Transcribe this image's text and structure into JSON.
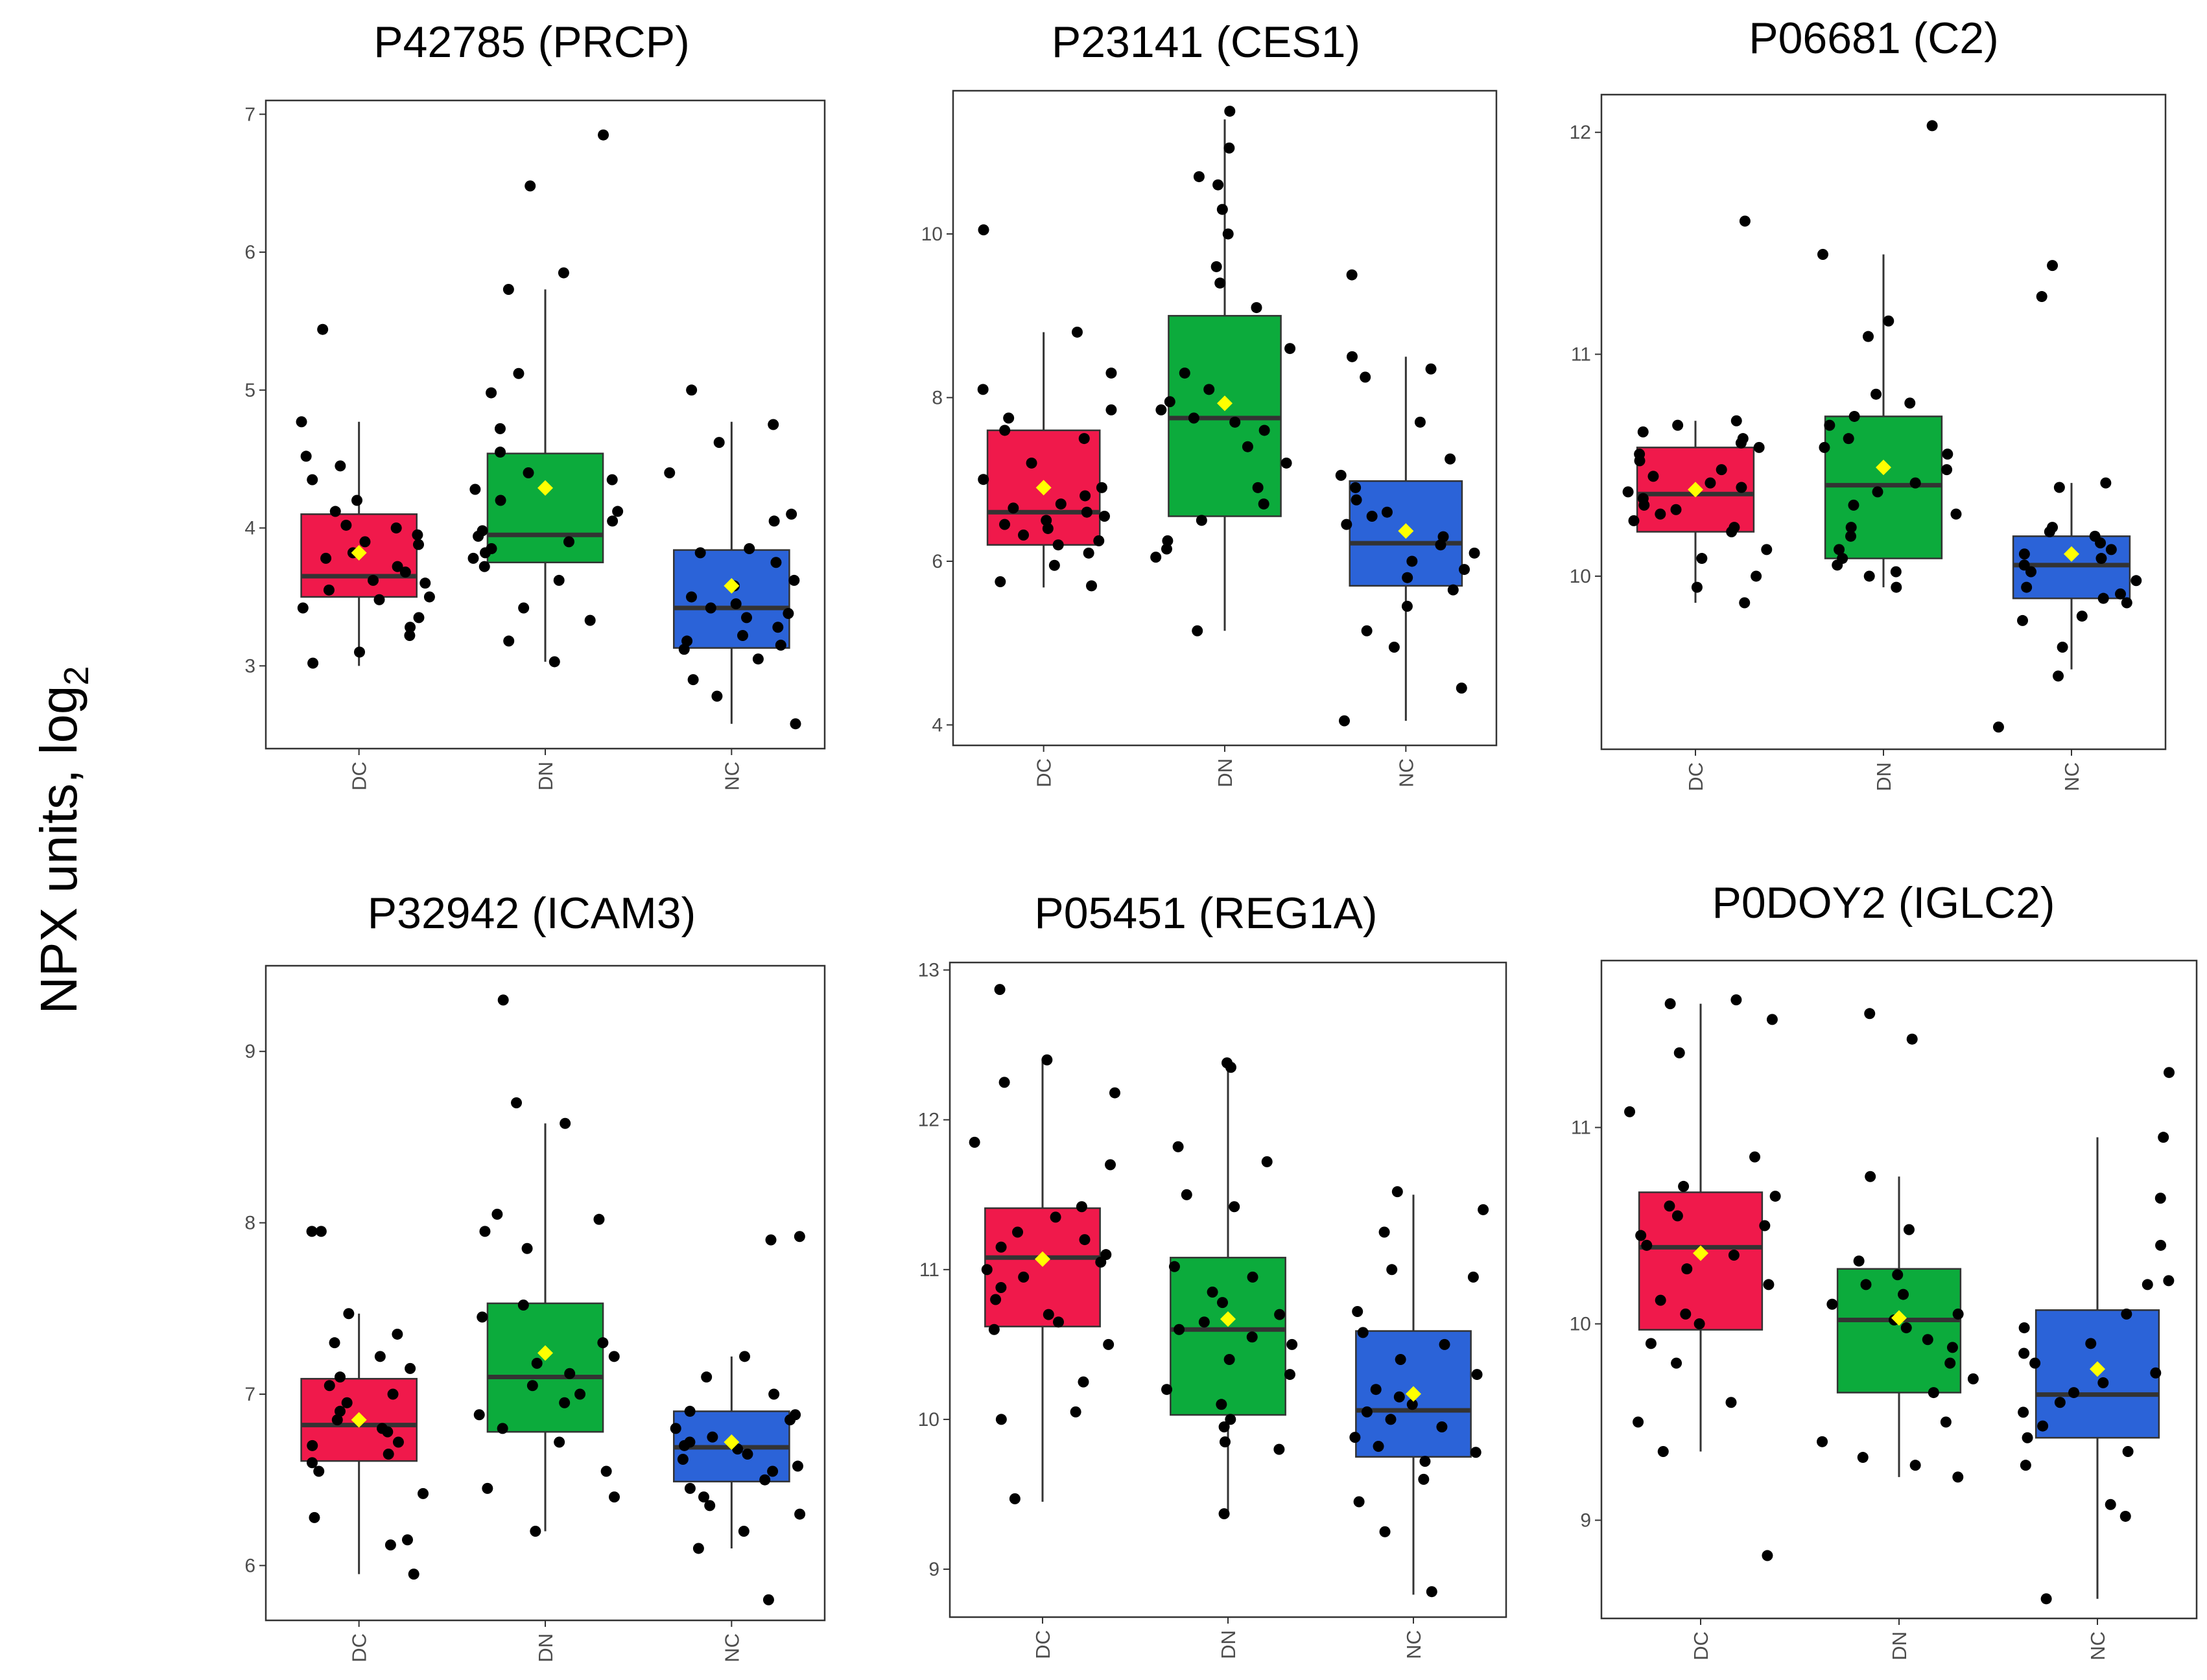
{
  "y_axis_label": {
    "text": "NPX units, log",
    "subscript": "2"
  },
  "colors": {
    "DC": "#f0194b",
    "DN": "#0cab3c",
    "NC": "#2b63d8",
    "mean_marker": "#ffff00",
    "point": "#000000",
    "median": "#333333"
  },
  "chart_data": [
    {
      "type": "box",
      "title": "P42785 (PRCP)",
      "categories": [
        "DC",
        "DN",
        "NC"
      ],
      "ylim": [
        2.4,
        7.1
      ],
      "yticks": [
        3,
        4,
        5,
        6,
        7
      ],
      "boxes": [
        {
          "cat": "DC",
          "q1": 3.5,
          "median": 3.65,
          "q3": 4.1,
          "whisker_low": 3.0,
          "whisker_high": 4.77,
          "mean": 3.82,
          "points": [
            3.02,
            3.1,
            3.22,
            3.28,
            3.35,
            3.42,
            3.48,
            3.5,
            3.55,
            3.6,
            3.62,
            3.68,
            3.72,
            3.78,
            3.82,
            3.88,
            3.9,
            3.95,
            4.0,
            4.02,
            4.12,
            4.2,
            4.35,
            4.45,
            4.52,
            4.77,
            5.44
          ]
        },
        {
          "cat": "DN",
          "q1": 3.75,
          "median": 3.95,
          "q3": 4.54,
          "whisker_low": 3.03,
          "whisker_high": 5.73,
          "mean": 4.29,
          "points": [
            3.03,
            3.18,
            3.33,
            3.42,
            3.62,
            3.72,
            3.78,
            3.82,
            3.85,
            3.9,
            3.94,
            3.98,
            4.05,
            4.12,
            4.2,
            4.28,
            4.35,
            4.4,
            4.55,
            4.72,
            4.98,
            5.12,
            5.73,
            5.85,
            6.48,
            6.85
          ]
        },
        {
          "cat": "NC",
          "q1": 3.13,
          "median": 3.42,
          "q3": 3.84,
          "whisker_low": 2.58,
          "whisker_high": 4.77,
          "mean": 3.58,
          "points": [
            2.58,
            2.78,
            2.9,
            3.05,
            3.12,
            3.15,
            3.18,
            3.22,
            3.28,
            3.35,
            3.38,
            3.42,
            3.45,
            3.5,
            3.58,
            3.62,
            3.75,
            3.82,
            3.85,
            4.05,
            4.1,
            4.4,
            4.62,
            4.75,
            5.0
          ]
        }
      ]
    },
    {
      "type": "box",
      "title": "P23141 (CES1)",
      "categories": [
        "DC",
        "DN",
        "NC"
      ],
      "ylim": [
        3.75,
        11.75
      ],
      "yticks": [
        4,
        6,
        8,
        10
      ],
      "boxes": [
        {
          "cat": "DC",
          "q1": 6.2,
          "median": 6.6,
          "q3": 7.6,
          "whisker_low": 5.68,
          "whisker_high": 8.8,
          "mean": 6.9,
          "points": [
            5.7,
            5.75,
            5.95,
            6.1,
            6.2,
            6.25,
            6.32,
            6.4,
            6.45,
            6.5,
            6.55,
            6.6,
            6.65,
            6.7,
            6.8,
            6.9,
            7.0,
            7.2,
            7.5,
            7.6,
            7.75,
            7.85,
            8.1,
            8.3,
            8.8,
            10.05
          ]
        },
        {
          "cat": "DN",
          "q1": 6.55,
          "median": 7.75,
          "q3": 9.0,
          "whisker_low": 5.15,
          "whisker_high": 11.4,
          "mean": 7.93,
          "points": [
            5.15,
            6.05,
            6.15,
            6.25,
            6.5,
            6.7,
            6.9,
            7.2,
            7.4,
            7.6,
            7.7,
            7.75,
            7.85,
            7.95,
            8.1,
            8.3,
            8.6,
            9.1,
            9.4,
            9.6,
            10.0,
            10.3,
            10.6,
            10.7,
            11.05,
            11.5
          ]
        },
        {
          "cat": "NC",
          "q1": 5.7,
          "median": 6.22,
          "q3": 6.98,
          "whisker_low": 4.05,
          "whisker_high": 8.5,
          "mean": 6.37,
          "points": [
            4.05,
            4.45,
            4.95,
            5.15,
            5.45,
            5.65,
            5.8,
            5.9,
            6.0,
            6.1,
            6.2,
            6.3,
            6.45,
            6.55,
            6.6,
            6.75,
            6.9,
            7.05,
            7.25,
            7.7,
            8.25,
            8.35,
            8.5,
            9.5
          ]
        }
      ]
    },
    {
      "type": "box",
      "title": "P06681 (C2)",
      "categories": [
        "DC",
        "DN",
        "NC"
      ],
      "ylim": [
        9.22,
        12.17
      ],
      "yticks": [
        10,
        11,
        12
      ],
      "boxes": [
        {
          "cat": "DC",
          "q1": 10.2,
          "median": 10.37,
          "q3": 10.58,
          "whisker_low": 9.88,
          "whisker_high": 10.7,
          "mean": 10.39,
          "points": [
            9.88,
            9.95,
            10.0,
            10.08,
            10.12,
            10.2,
            10.22,
            10.25,
            10.28,
            10.3,
            10.32,
            10.35,
            10.38,
            10.4,
            10.42,
            10.45,
            10.48,
            10.52,
            10.55,
            10.58,
            10.6,
            10.62,
            10.65,
            10.68,
            10.7,
            11.6
          ]
        },
        {
          "cat": "DN",
          "q1": 10.08,
          "median": 10.41,
          "q3": 10.72,
          "whisker_low": 9.95,
          "whisker_high": 11.45,
          "mean": 10.49,
          "points": [
            9.95,
            10.0,
            10.02,
            10.05,
            10.08,
            10.12,
            10.18,
            10.22,
            10.28,
            10.32,
            10.38,
            10.42,
            10.48,
            10.55,
            10.58,
            10.62,
            10.68,
            10.72,
            10.78,
            10.82,
            11.08,
            11.15,
            11.45,
            12.03
          ]
        },
        {
          "cat": "NC",
          "q1": 9.9,
          "median": 10.05,
          "q3": 10.18,
          "whisker_low": 9.58,
          "whisker_high": 10.42,
          "mean": 10.1,
          "points": [
            9.32,
            9.55,
            9.68,
            9.8,
            9.82,
            9.88,
            9.9,
            9.92,
            9.95,
            9.98,
            10.02,
            10.05,
            10.08,
            10.1,
            10.12,
            10.15,
            10.18,
            10.2,
            10.22,
            10.4,
            10.42,
            11.26,
            11.4
          ]
        }
      ]
    },
    {
      "type": "box",
      "title": "P32942 (ICAM3)",
      "categories": [
        "DC",
        "DN",
        "NC"
      ],
      "ylim": [
        5.68,
        9.5
      ],
      "yticks": [
        6,
        7,
        8,
        9
      ],
      "boxes": [
        {
          "cat": "DC",
          "q1": 6.61,
          "median": 6.82,
          "q3": 7.09,
          "whisker_low": 5.95,
          "whisker_high": 7.47,
          "mean": 6.85,
          "points": [
            5.95,
            6.12,
            6.15,
            6.28,
            6.42,
            6.55,
            6.6,
            6.65,
            6.7,
            6.72,
            6.78,
            6.8,
            6.85,
            6.9,
            6.95,
            7.0,
            7.05,
            7.1,
            7.15,
            7.22,
            7.3,
            7.35,
            7.47,
            7.95,
            7.95
          ]
        },
        {
          "cat": "DN",
          "q1": 6.78,
          "median": 7.1,
          "q3": 7.53,
          "whisker_low": 6.2,
          "whisker_high": 8.58,
          "mean": 7.24,
          "points": [
            6.2,
            6.4,
            6.45,
            6.55,
            6.72,
            6.8,
            6.88,
            6.95,
            7.0,
            7.05,
            7.12,
            7.18,
            7.22,
            7.3,
            7.45,
            7.52,
            7.85,
            7.95,
            8.02,
            8.05,
            8.58,
            8.7,
            9.3
          ]
        },
        {
          "cat": "NC",
          "q1": 6.49,
          "median": 6.69,
          "q3": 6.9,
          "whisker_low": 6.1,
          "whisker_high": 7.22,
          "mean": 6.72,
          "points": [
            5.8,
            6.1,
            6.2,
            6.3,
            6.35,
            6.4,
            6.45,
            6.5,
            6.55,
            6.58,
            6.62,
            6.65,
            6.68,
            6.7,
            6.72,
            6.75,
            6.8,
            6.85,
            6.88,
            6.9,
            7.0,
            7.1,
            7.22,
            7.9,
            7.92
          ]
        }
      ]
    },
    {
      "type": "box",
      "title": "P05451 (REG1A)",
      "categories": [
        "DC",
        "DN",
        "NC"
      ],
      "ylim": [
        8.68,
        13.05
      ],
      "yticks": [
        9,
        10,
        11,
        12,
        13
      ],
      "boxes": [
        {
          "cat": "DC",
          "q1": 10.62,
          "median": 11.08,
          "q3": 11.41,
          "whisker_low": 9.45,
          "whisker_high": 12.4,
          "mean": 11.07,
          "points": [
            9.47,
            10.0,
            10.05,
            10.25,
            10.5,
            10.6,
            10.65,
            10.7,
            10.8,
            10.88,
            10.95,
            11.0,
            11.05,
            11.1,
            11.15,
            11.2,
            11.25,
            11.35,
            11.42,
            11.7,
            11.85,
            12.18,
            12.25,
            12.4,
            12.87
          ]
        },
        {
          "cat": "DN",
          "q1": 10.03,
          "median": 10.6,
          "q3": 11.08,
          "whisker_low": 9.35,
          "whisker_high": 12.35,
          "mean": 10.67,
          "points": [
            9.37,
            9.8,
            9.85,
            9.95,
            10.0,
            10.1,
            10.2,
            10.3,
            10.4,
            10.5,
            10.55,
            10.6,
            10.65,
            10.7,
            10.78,
            10.85,
            10.95,
            11.02,
            11.42,
            11.5,
            11.72,
            11.82,
            12.35,
            12.38
          ]
        },
        {
          "cat": "NC",
          "q1": 9.75,
          "median": 10.06,
          "q3": 10.59,
          "whisker_low": 8.83,
          "whisker_high": 11.5,
          "mean": 10.17,
          "points": [
            8.85,
            9.25,
            9.45,
            9.6,
            9.72,
            9.78,
            9.82,
            9.88,
            9.95,
            10.0,
            10.05,
            10.1,
            10.15,
            10.2,
            10.3,
            10.4,
            10.5,
            10.58,
            10.72,
            10.95,
            11.0,
            11.25,
            11.4,
            11.52
          ]
        }
      ]
    },
    {
      "type": "box",
      "title": "P0DOY2 (IGLC2)",
      "categories": [
        "DC",
        "DN",
        "NC"
      ],
      "ylim": [
        8.5,
        11.85
      ],
      "yticks": [
        9,
        10,
        11
      ],
      "boxes": [
        {
          "cat": "DC",
          "q1": 9.97,
          "median": 10.39,
          "q3": 10.67,
          "whisker_low": 9.35,
          "whisker_high": 11.63,
          "mean": 10.36,
          "points": [
            8.82,
            9.35,
            9.5,
            9.6,
            9.8,
            9.9,
            10.0,
            10.05,
            10.12,
            10.2,
            10.28,
            10.35,
            10.4,
            10.45,
            10.5,
            10.55,
            10.6,
            10.65,
            10.7,
            10.85,
            11.08,
            11.38,
            11.55,
            11.63,
            11.65
          ]
        },
        {
          "cat": "DN",
          "q1": 9.65,
          "median": 10.02,
          "q3": 10.28,
          "whisker_low": 9.22,
          "whisker_high": 10.75,
          "mean": 10.03,
          "points": [
            9.22,
            9.28,
            9.32,
            9.4,
            9.5,
            9.65,
            9.72,
            9.8,
            9.88,
            9.92,
            9.98,
            10.02,
            10.05,
            10.1,
            10.15,
            10.2,
            10.25,
            10.32,
            10.48,
            10.75,
            11.45,
            11.58
          ]
        },
        {
          "cat": "NC",
          "q1": 9.42,
          "median": 9.64,
          "q3": 10.07,
          "whisker_low": 8.6,
          "whisker_high": 10.95,
          "mean": 9.77,
          "points": [
            8.6,
            9.02,
            9.08,
            9.28,
            9.35,
            9.42,
            9.48,
            9.55,
            9.6,
            9.65,
            9.7,
            9.75,
            9.8,
            9.85,
            9.9,
            9.98,
            10.05,
            10.2,
            10.22,
            10.4,
            10.64,
            10.95,
            11.28
          ]
        }
      ]
    }
  ]
}
